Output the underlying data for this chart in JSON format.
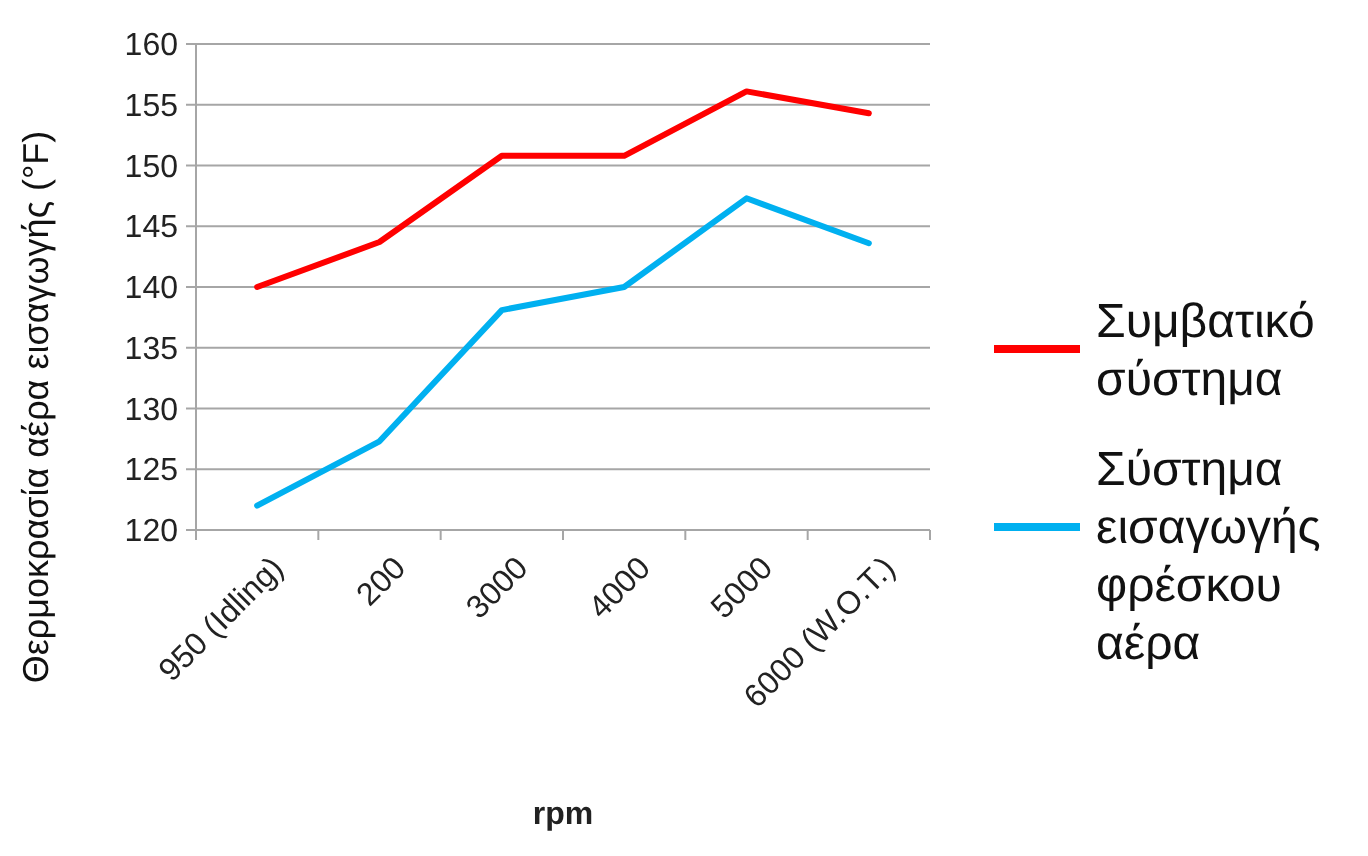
{
  "chart_data": {
    "type": "line",
    "xlabel": "rpm",
    "ylabel": "Θερμοκρασία αέρα εισαγωγής (°F)",
    "categories": [
      "950 (Idling)",
      "200",
      "3000",
      "4000",
      "5000",
      "6000 (W.O.T.)"
    ],
    "series": [
      {
        "name": "Συμβατικό σύστημα",
        "color": "#ff0000",
        "values": [
          140,
          143.7,
          150.8,
          150.8,
          156.1,
          154.3
        ]
      },
      {
        "name": "Σύστημα εισαγωγής φρέσκου αέρα",
        "color": "#00b0f0",
        "values": [
          122,
          127.3,
          138.1,
          140,
          147.3,
          143.6
        ]
      }
    ],
    "ylim": [
      120,
      160
    ],
    "yticks": [
      120,
      125,
      130,
      135,
      140,
      145,
      150,
      155,
      160
    ],
    "grid": "y",
    "legend": "right",
    "marker": "none",
    "line_style": "solid"
  }
}
